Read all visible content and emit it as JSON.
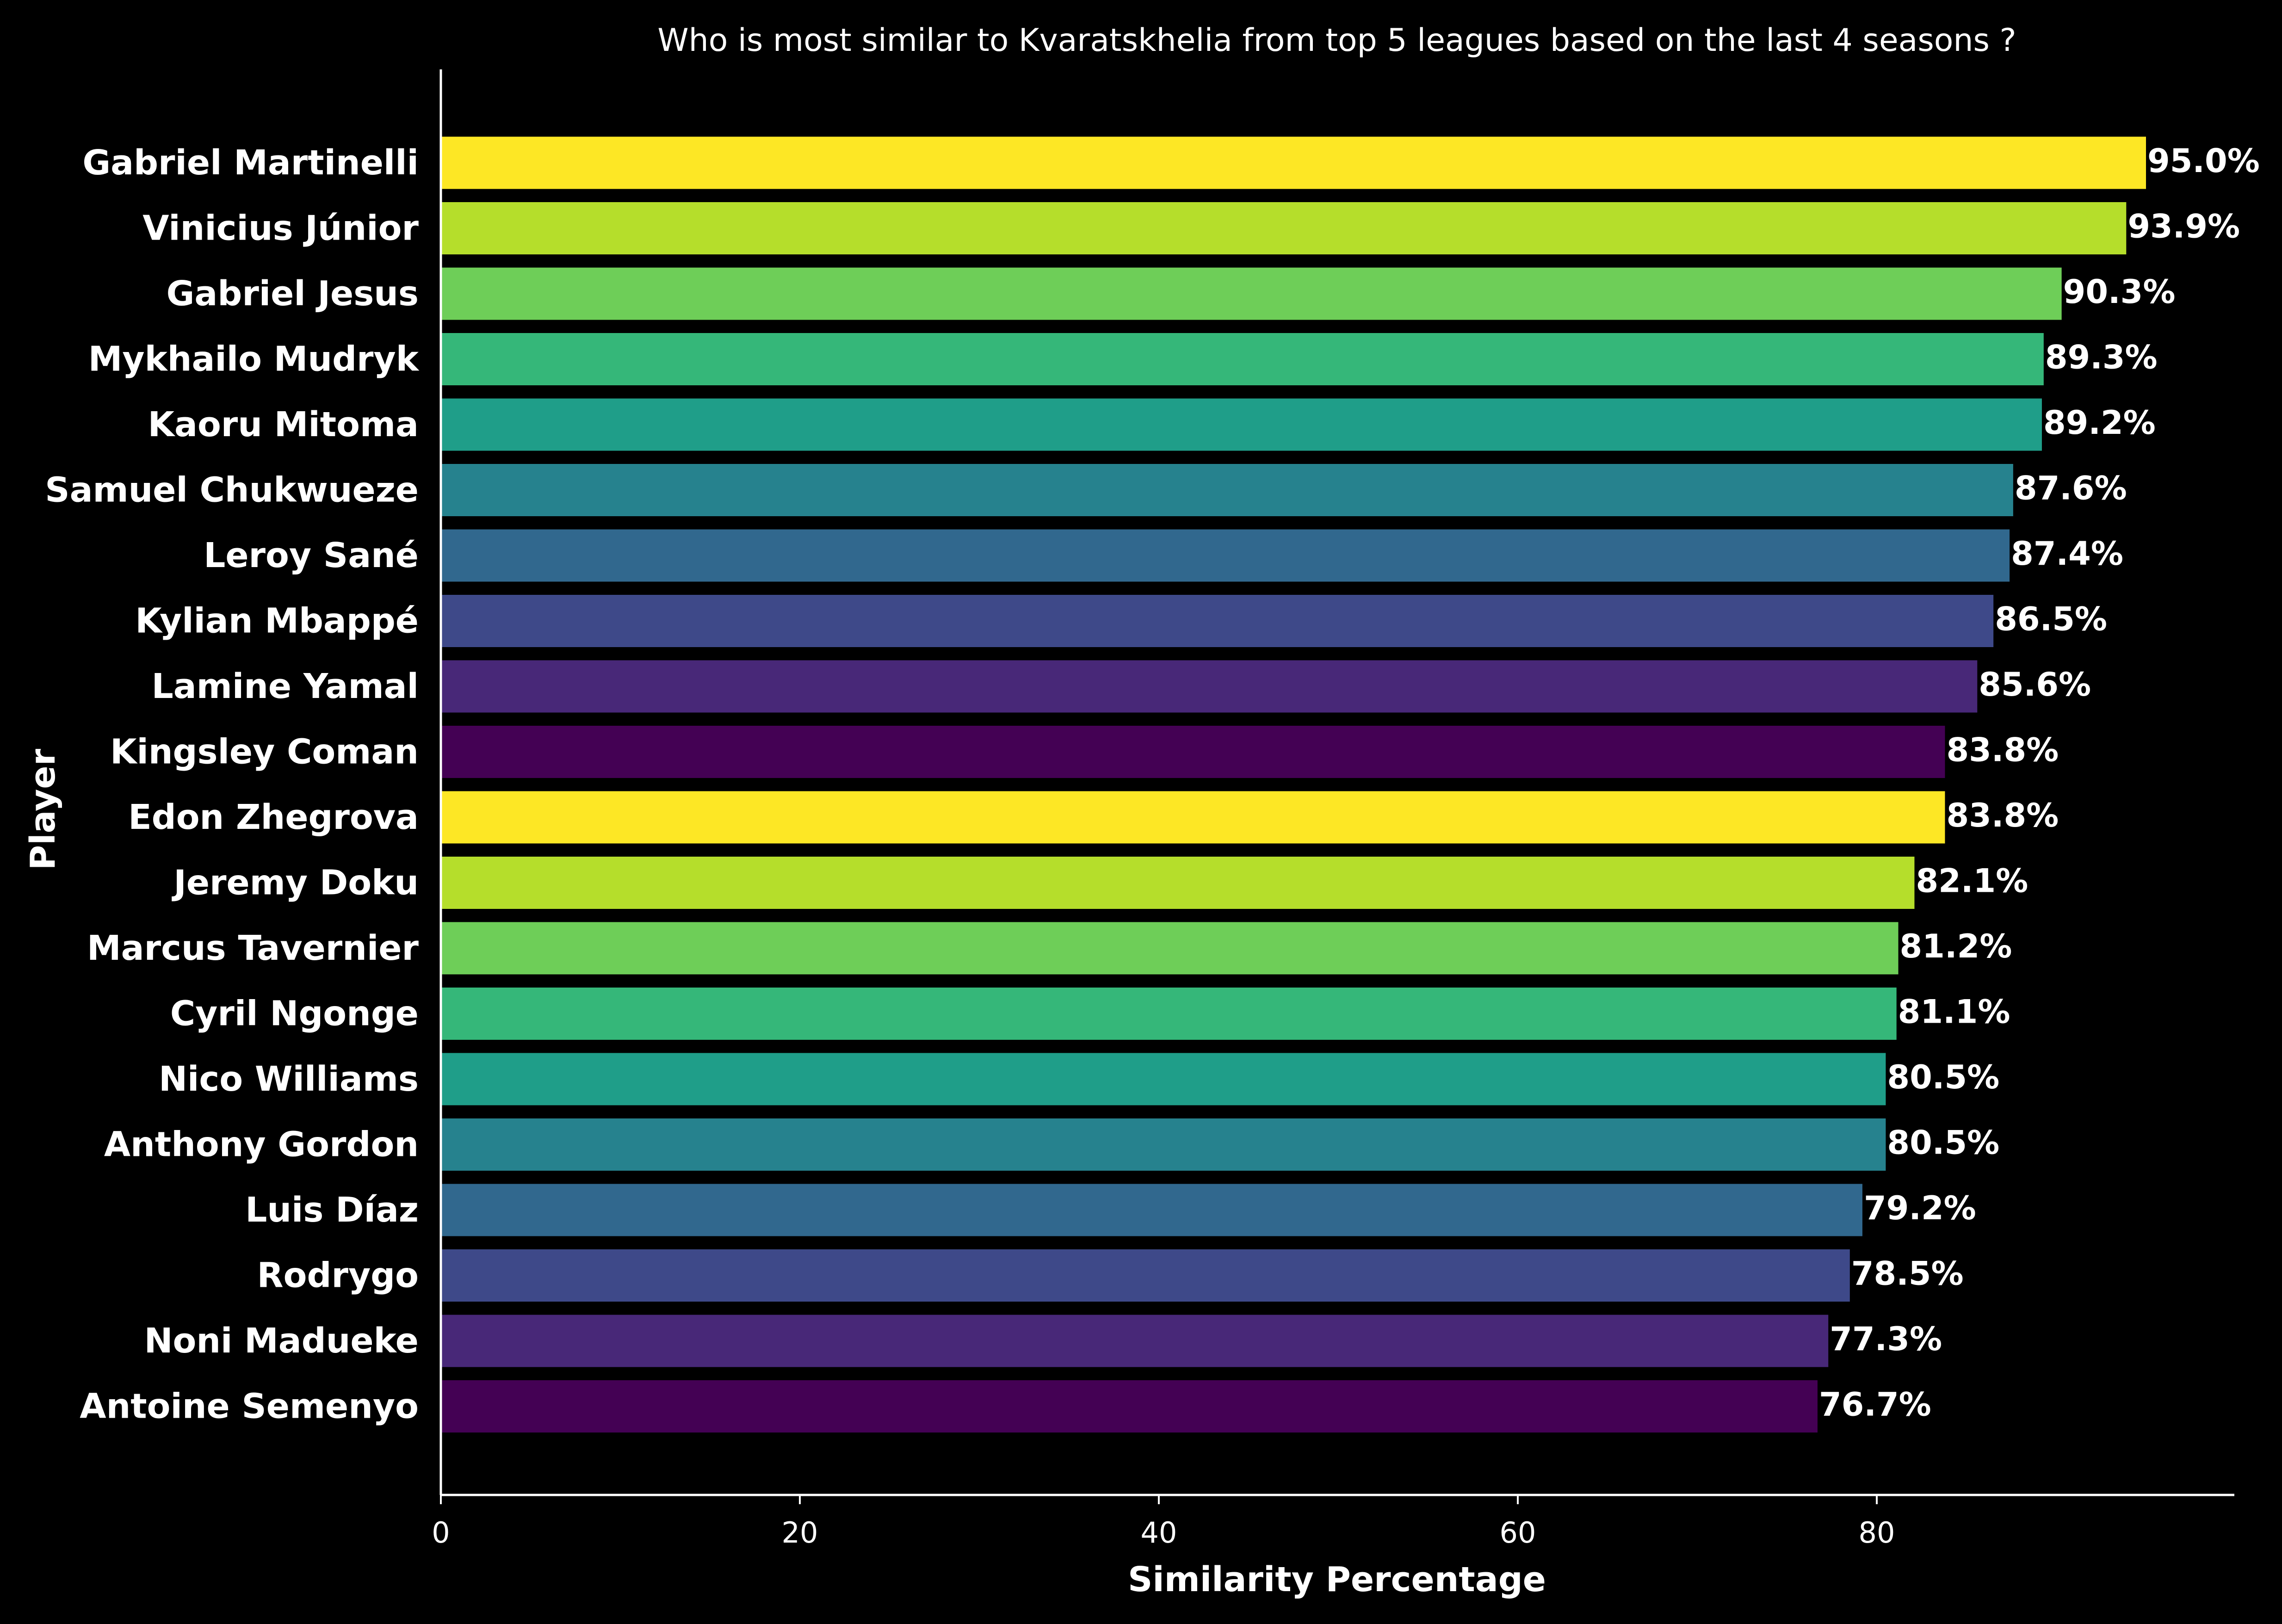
{
  "chart_data": {
    "type": "bar",
    "orientation": "horizontal",
    "title": "Who is most similar to Kvaratskhelia from top 5 leagues based on the last 4 seasons ?",
    "xlabel": "Similarity Percentage",
    "ylabel": "Player",
    "xlim": [
      0,
      100
    ],
    "xticks": [
      0,
      20,
      40,
      60,
      80
    ],
    "grid": false,
    "legend": "none",
    "categories": [
      "Gabriel Martinelli",
      "Vinicius Júnior",
      "Gabriel Jesus",
      "Mykhailo Mudryk",
      "Kaoru Mitoma",
      "Samuel Chukwueze",
      "Leroy Sané",
      "Kylian Mbappé",
      "Lamine Yamal",
      "Kingsley Coman",
      "Edon Zhegrova",
      "Jeremy Doku",
      "Marcus Tavernier",
      "Cyril Ngonge",
      "Nico Williams",
      "Anthony Gordon",
      "Luis Díaz",
      "Rodrygo",
      "Noni Madueke",
      "Antoine Semenyo"
    ],
    "values": [
      95.0,
      93.9,
      90.3,
      89.3,
      89.2,
      87.6,
      87.4,
      86.5,
      85.6,
      83.8,
      83.8,
      82.1,
      81.2,
      81.1,
      80.5,
      80.5,
      79.2,
      78.5,
      77.3,
      76.7
    ],
    "value_labels": [
      "95.0%",
      "93.9%",
      "90.3%",
      "89.3%",
      "89.2%",
      "87.6%",
      "87.4%",
      "86.5%",
      "85.6%",
      "83.8%",
      "83.8%",
      "82.1%",
      "81.2%",
      "81.1%",
      "80.5%",
      "80.5%",
      "79.2%",
      "78.5%",
      "77.3%",
      "76.7%"
    ],
    "colors": [
      "#fde725",
      "#b5de2b",
      "#6ece58",
      "#35b779",
      "#1f9e89",
      "#26828e",
      "#31688e",
      "#3e4989",
      "#482878",
      "#440154",
      "#fde725",
      "#b5de2b",
      "#6ece58",
      "#35b779",
      "#1f9e89",
      "#26828e",
      "#31688e",
      "#3e4989",
      "#482878",
      "#440154"
    ],
    "background": "#000000",
    "text_color": "#ffffff"
  }
}
